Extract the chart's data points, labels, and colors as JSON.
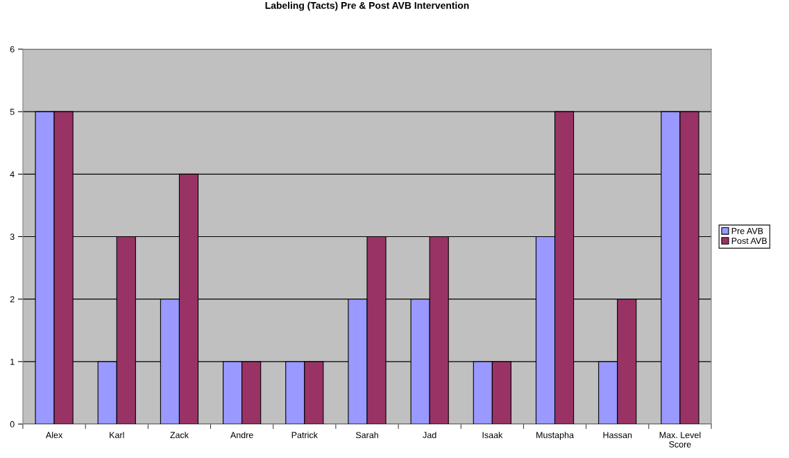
{
  "chart_data": {
    "type": "bar",
    "title": "Labeling (Tacts) Pre & Post AVB Intervention",
    "categories": [
      "Alex",
      "Karl",
      "Zack",
      "Andre",
      "Patrick",
      "Sarah",
      "Jad",
      "Isaak",
      "Mustapha",
      "Hassan",
      "Max. Level\nScore"
    ],
    "series": [
      {
        "name": "Pre AVB",
        "color": "#9999ff",
        "values": [
          5,
          1,
          2,
          1,
          1,
          2,
          2,
          1,
          3,
          1,
          5
        ]
      },
      {
        "name": "Post AVB",
        "color": "#993366",
        "values": [
          5,
          3,
          4,
          1,
          1,
          3,
          3,
          1,
          5,
          2,
          5
        ]
      }
    ],
    "ylim": [
      0,
      6
    ],
    "yticks": [
      0,
      1,
      2,
      3,
      4,
      5,
      6
    ],
    "grid": "y",
    "legend": "right"
  }
}
